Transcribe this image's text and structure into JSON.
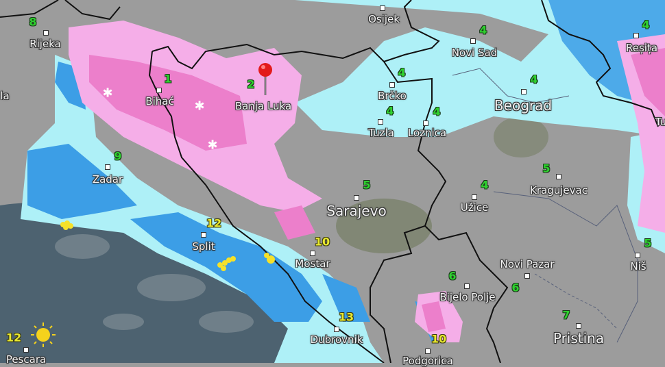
{
  "map": {
    "colors": {
      "land": "#9c9c9c",
      "sea": "#4d6270",
      "light_snow": "#f5aee8",
      "heavy_snow": "#ec7fcb",
      "light_rain": "#aef0f7",
      "rain": "#3c9ee6",
      "border": "#111111",
      "temp_cold": "#2fd12f",
      "temp_warm": "#e8e830"
    },
    "cities": [
      {
        "name": "Rijeka"
      },
      {
        "name": "Bihać"
      },
      {
        "name": "Banja Luka"
      },
      {
        "name": "Osijek"
      },
      {
        "name": "Novi Sad"
      },
      {
        "name": "Brčko"
      },
      {
        "name": "Beograd"
      },
      {
        "name": "Tuzla"
      },
      {
        "name": "Loznica"
      },
      {
        "name": "Reșița"
      },
      {
        "name": "Zadar"
      },
      {
        "name": "Kragujevac"
      },
      {
        "name": "Sarajevo"
      },
      {
        "name": "Užice"
      },
      {
        "name": "Split"
      },
      {
        "name": "Mostar"
      },
      {
        "name": "Novi Pazar"
      },
      {
        "name": "Niš"
      },
      {
        "name": "Bijelo Polje"
      },
      {
        "name": "Pristina"
      },
      {
        "name": "Dubrovnik"
      },
      {
        "name": "Podgorica"
      },
      {
        "name": "Pescara"
      },
      {
        "name": "la"
      },
      {
        "name": "Tu"
      }
    ],
    "temperatures": [
      "8",
      "1",
      "2",
      "9",
      "4",
      "4",
      "4",
      "4",
      "4",
      "4",
      "5",
      "4",
      "5",
      "5",
      "12",
      "10",
      "6",
      "6",
      "7",
      "13",
      "10",
      "12"
    ],
    "icons": {
      "pin": "location-pin-icon",
      "snow": "snowflake-icon",
      "sun": "sun-icon",
      "thunder": "lightning-dots-icon"
    }
  }
}
